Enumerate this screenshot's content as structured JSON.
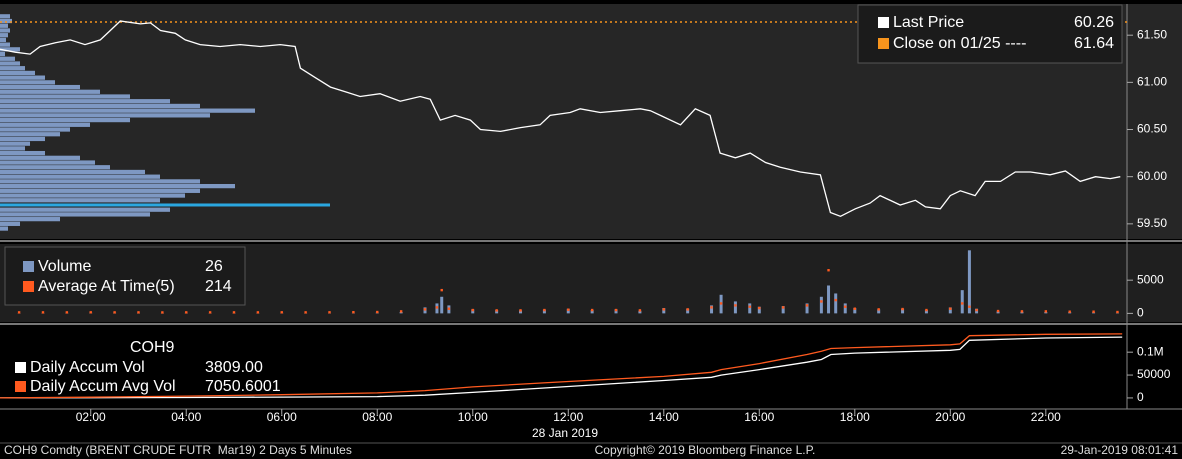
{
  "chart_data": [
    {
      "type": "line",
      "x": [
        0.1,
        0.42,
        0.73,
        0.94,
        1.26,
        1.57,
        1.88,
        2.2,
        2.41,
        2.62,
        3.04,
        3.25,
        3.46,
        3.77,
        3.98,
        4.29,
        4.71,
        5.13,
        5.55,
        5.97,
        6.28,
        6.39,
        6.7,
        7.02,
        7.33,
        7.64,
        8.06,
        8.48,
        8.9,
        9.11,
        9.32,
        9.63,
        9.95,
        10.16,
        10.58,
        11.0,
        11.41,
        11.62,
        12.04,
        12.25,
        12.67,
        13.09,
        13.51,
        13.72,
        13.93,
        14.35,
        14.66,
        14.97,
        15.18,
        15.5,
        15.81,
        16.13,
        16.44,
        16.86,
        17.28,
        17.49,
        17.7,
        18.01,
        18.32,
        18.53,
        18.95,
        19.27,
        19.48,
        19.79,
        20.0,
        20.21,
        20.52,
        20.73,
        21.05,
        21.36,
        21.68,
        22.09,
        22.41,
        22.72,
        23.04,
        23.35,
        23.56
      ],
      "series": [
        {
          "name": "Last Price",
          "color": "#ffffff",
          "last": 60.26,
          "values": [
            61.35,
            61.32,
            61.3,
            61.38,
            61.42,
            61.45,
            61.4,
            61.45,
            61.55,
            61.65,
            61.62,
            61.63,
            61.55,
            61.52,
            61.45,
            61.4,
            61.38,
            61.4,
            61.38,
            61.4,
            61.38,
            61.15,
            61.05,
            60.95,
            60.9,
            60.85,
            60.88,
            60.8,
            60.85,
            60.82,
            60.6,
            60.65,
            60.6,
            60.5,
            60.48,
            60.52,
            60.55,
            60.65,
            60.68,
            60.72,
            60.68,
            60.7,
            60.72,
            60.7,
            60.65,
            60.55,
            60.72,
            60.65,
            60.25,
            60.2,
            60.25,
            60.15,
            60.1,
            60.05,
            60.02,
            59.62,
            59.58,
            59.66,
            59.72,
            59.8,
            59.7,
            59.75,
            59.68,
            59.66,
            59.8,
            59.85,
            59.8,
            59.95,
            59.95,
            60.05,
            60.05,
            60.02,
            60.06,
            59.95,
            60.0,
            59.98,
            60.0
          ]
        }
      ],
      "reference": {
        "name": "Close on 01/25 ----",
        "value": 61.64,
        "color": "#f7941d"
      },
      "profile": {
        "color": "#7e98c2",
        "highlight_color": "#2aa7e0",
        "highlight": 59.7,
        "prices": [
          61.7,
          61.65,
          61.6,
          61.55,
          61.5,
          61.45,
          61.4,
          61.35,
          61.3,
          61.25,
          61.2,
          61.15,
          61.1,
          61.05,
          61.0,
          60.95,
          60.9,
          60.85,
          60.8,
          60.75,
          60.7,
          60.65,
          60.6,
          60.55,
          60.5,
          60.45,
          60.4,
          60.35,
          60.3,
          60.25,
          60.2,
          60.15,
          60.1,
          60.05,
          60.0,
          59.95,
          59.9,
          59.85,
          59.8,
          59.75,
          59.7,
          59.65,
          59.6,
          59.55,
          59.5,
          59.45
        ],
        "values": [
          200,
          240,
          160,
          200,
          160,
          120,
          200,
          400,
          100,
          300,
          400,
          500,
          700,
          900,
          1100,
          1600,
          2000,
          2600,
          3400,
          4000,
          5100,
          4200,
          2600,
          1800,
          1400,
          1200,
          900,
          600,
          500,
          900,
          1600,
          1900,
          2200,
          2900,
          3200,
          4000,
          4700,
          4000,
          3700,
          3200,
          6600,
          3400,
          3000,
          1200,
          400,
          160
        ]
      },
      "xlim": [
        0.1,
        23.7
      ],
      "ylim": [
        59.35,
        61.82
      ],
      "yticks": [
        {
          "value": 59.5,
          "label": "59.50"
        },
        {
          "value": 60,
          "label": "60.00"
        },
        {
          "value": 60.5,
          "label": "60.50"
        },
        {
          "value": 61,
          "label": "61.00"
        },
        {
          "value": 61.5,
          "label": "61.50"
        }
      ]
    },
    {
      "type": "bar",
      "x": [
        0.5,
        1,
        1.5,
        2,
        2.5,
        3,
        3.5,
        4,
        4.5,
        5,
        5.5,
        6,
        6.5,
        7,
        7.5,
        8,
        8.5,
        9,
        9.25,
        9.35,
        9.5,
        10,
        10.5,
        11,
        11.5,
        12,
        12.5,
        13,
        13.5,
        14,
        14.5,
        15,
        15.2,
        15.5,
        15.8,
        16,
        16.5,
        17,
        17.3,
        17.45,
        17.6,
        17.8,
        18,
        18.5,
        19,
        19.5,
        20,
        20.25,
        20.4,
        20.55,
        21,
        21.5,
        22,
        22.5,
        23,
        23.5
      ],
      "series": [
        {
          "name": "Volume",
          "color": "#7e98c2",
          "mark": "bar",
          "last": 26,
          "values": [
            50,
            60,
            80,
            100,
            90,
            80,
            70,
            90,
            60,
            60,
            70,
            80,
            60,
            70,
            80,
            120,
            200,
            900,
            1500,
            2500,
            1200,
            600,
            500,
            450,
            550,
            700,
            500,
            600,
            400,
            800,
            700,
            1200,
            2800,
            1800,
            1500,
            1000,
            1100,
            1500,
            2500,
            4200,
            3000,
            1500,
            800,
            600,
            700,
            500,
            900,
            3500,
            9500,
            700,
            300,
            250,
            200,
            180,
            150,
            100
          ]
        },
        {
          "name": "Average At Time(5)",
          "color": "#ff5a1f",
          "mark": "dot",
          "last": 214,
          "values": [
            150,
            150,
            150,
            160,
            150,
            150,
            140,
            150,
            150,
            150,
            150,
            160,
            150,
            160,
            180,
            200,
            300,
            600,
            900,
            3500,
            700,
            500,
            450,
            450,
            500,
            550,
            500,
            500,
            450,
            600,
            600,
            900,
            1500,
            1200,
            1000,
            800,
            900,
            1200,
            1800,
            6500,
            2000,
            1000,
            700,
            600,
            650,
            500,
            700,
            1500,
            1000,
            500,
            350,
            300,
            300,
            250,
            250,
            200
          ]
        }
      ],
      "xlim": [
        0.1,
        23.7
      ],
      "ylim": [
        -1300,
        10300
      ],
      "yticks": [
        0,
        5000
      ]
    },
    {
      "type": "line",
      "title": "COH9",
      "x": [
        0.1,
        2,
        4,
        6,
        8,
        9,
        10,
        12,
        14,
        15,
        15.2,
        16,
        17,
        17.3,
        17.5,
        18,
        20,
        20.2,
        20.4,
        22,
        23.6
      ],
      "series": [
        {
          "name": "Daily Accum Vol",
          "color": "#ffffff",
          "last": 3809,
          "last_label": "3809.00",
          "values": [
            0,
            500,
            1000,
            1800,
            3000,
            6000,
            12000,
            25000,
            38000,
            45000,
            50000,
            62000,
            78000,
            84000,
            95000,
            98000,
            104000,
            106000,
            126000,
            131000,
            133000
          ]
        },
        {
          "name": "Daily Accum Avg Vol",
          "color": "#ff5a1f",
          "last": 7050.6001,
          "values": [
            0,
            1500,
            4000,
            7000,
            11000,
            16000,
            24000,
            36000,
            47000,
            56000,
            62000,
            75000,
            95000,
            102000,
            108000,
            110000,
            116000,
            118000,
            136000,
            139000,
            140000
          ]
        }
      ],
      "xlim": [
        0.1,
        23.7
      ],
      "ylim": [
        -22000,
        155000
      ],
      "yticks": [
        0,
        50000,
        {
          "value": 100000,
          "label": "0.1M"
        }
      ],
      "xticks": [
        {
          "value": 2,
          "label": "02:00"
        },
        {
          "value": 4,
          "label": "04:00"
        },
        {
          "value": 6,
          "label": "06:00"
        },
        {
          "value": 8,
          "label": "08:00"
        },
        {
          "value": 10,
          "label": "10:00"
        },
        {
          "value": 12,
          "label": "12:00"
        },
        {
          "value": 14,
          "label": "14:00"
        },
        {
          "value": 16,
          "label": "16:00"
        },
        {
          "value": 18,
          "label": "18:00"
        },
        {
          "value": 20,
          "label": "20:00"
        },
        {
          "value": 22,
          "label": "22:00"
        }
      ],
      "xlabel": "28 Jan 2019"
    }
  ],
  "footer": {
    "left": "COH9 Comdty (BRENT CRUDE FUTR  Mar19) 2 Days 5 Minutes",
    "center": "Copyright© 2019 Bloomberg Finance L.P.",
    "right": "29-Jan-2019 08:01:41"
  }
}
